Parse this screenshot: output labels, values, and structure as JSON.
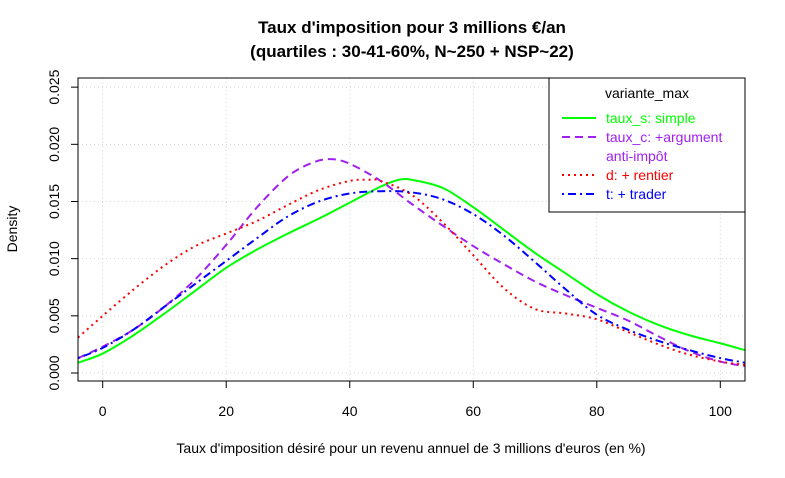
{
  "chart_data": {
    "type": "line",
    "title": "Taux d'imposition pour 3 millions €/an",
    "subtitle": "(quartiles : 30-41-60%, N~250 + NSP~22)",
    "xlabel": "Taux d'imposition désiré pour un revenu annuel de 3 millions d'euros (en %)",
    "ylabel": "Density",
    "xlim": [
      -4,
      104
    ],
    "ylim": [
      -0.0007,
      0.0258
    ],
    "xticks": [
      0,
      20,
      40,
      60,
      80,
      100
    ],
    "xtick_labels": [
      "0",
      "20",
      "40",
      "60",
      "80",
      "100"
    ],
    "yticks": [
      0.0,
      0.005,
      0.01,
      0.015,
      0.02,
      0.025
    ],
    "ytick_labels": [
      "0.000",
      "0.005",
      "0.010",
      "0.015",
      "0.020",
      "0.025"
    ],
    "grid": true,
    "legend": {
      "title": "variante_max",
      "position": "top-right"
    },
    "series": [
      {
        "name": "taux_s: simple",
        "label_lines": [
          "taux_s: simple"
        ],
        "color": "#00ff00",
        "dash": "solid",
        "x": [
          -4,
          0,
          5,
          10,
          15,
          20,
          25,
          30,
          35,
          40,
          45,
          48,
          50,
          55,
          60,
          65,
          70,
          75,
          80,
          85,
          90,
          95,
          100,
          104
        ],
        "y": [
          0.0009,
          0.0017,
          0.0033,
          0.0052,
          0.0072,
          0.0092,
          0.0108,
          0.0122,
          0.0135,
          0.0149,
          0.0163,
          0.0169,
          0.0169,
          0.0162,
          0.0145,
          0.0125,
          0.0105,
          0.0087,
          0.0069,
          0.0054,
          0.0042,
          0.0033,
          0.0026,
          0.002
        ]
      },
      {
        "name": "taux_c: +argument anti-impôt",
        "label_lines": [
          "taux_c: +argument",
          "anti-impôt"
        ],
        "color": "#a020f0",
        "dash": "dashed",
        "x": [
          -4,
          0,
          5,
          10,
          15,
          20,
          25,
          30,
          34,
          37,
          40,
          45,
          50,
          55,
          60,
          65,
          70,
          75,
          80,
          85,
          90,
          95,
          100,
          104
        ],
        "y": [
          0.0013,
          0.0023,
          0.0038,
          0.0058,
          0.0082,
          0.0112,
          0.0145,
          0.0172,
          0.0184,
          0.0187,
          0.0183,
          0.0168,
          0.0148,
          0.0129,
          0.0111,
          0.0095,
          0.008,
          0.0068,
          0.0057,
          0.0046,
          0.0032,
          0.0019,
          0.001,
          0.0006
        ]
      },
      {
        "name": "d: + rentier",
        "label_lines": [
          "d: + rentier"
        ],
        "color": "#ff0000",
        "dash": "dotted",
        "x": [
          -4,
          0,
          5,
          10,
          15,
          20,
          25,
          30,
          35,
          40,
          43,
          45,
          50,
          55,
          60,
          65,
          70,
          75,
          80,
          85,
          90,
          95,
          100,
          104
        ],
        "y": [
          0.0031,
          0.005,
          0.0073,
          0.0094,
          0.0111,
          0.0122,
          0.0133,
          0.0147,
          0.016,
          0.0168,
          0.0169,
          0.0168,
          0.0156,
          0.0132,
          0.0103,
          0.0074,
          0.0056,
          0.0052,
          0.0047,
          0.0036,
          0.0025,
          0.0016,
          0.001,
          0.0007
        ]
      },
      {
        "name": "t: + trader",
        "label_lines": [
          "t: + trader"
        ],
        "color": "#0000ff",
        "dash": "dotdash",
        "x": [
          -4,
          0,
          5,
          10,
          15,
          20,
          25,
          30,
          35,
          40,
          45,
          50,
          55,
          60,
          65,
          70,
          75,
          80,
          85,
          90,
          95,
          100,
          104
        ],
        "y": [
          0.0013,
          0.0022,
          0.0038,
          0.0058,
          0.0078,
          0.0098,
          0.0118,
          0.0137,
          0.015,
          0.0157,
          0.0159,
          0.0158,
          0.0152,
          0.0139,
          0.012,
          0.0097,
          0.0073,
          0.0051,
          0.0038,
          0.0028,
          0.002,
          0.0013,
          0.0009
        ]
      }
    ]
  }
}
